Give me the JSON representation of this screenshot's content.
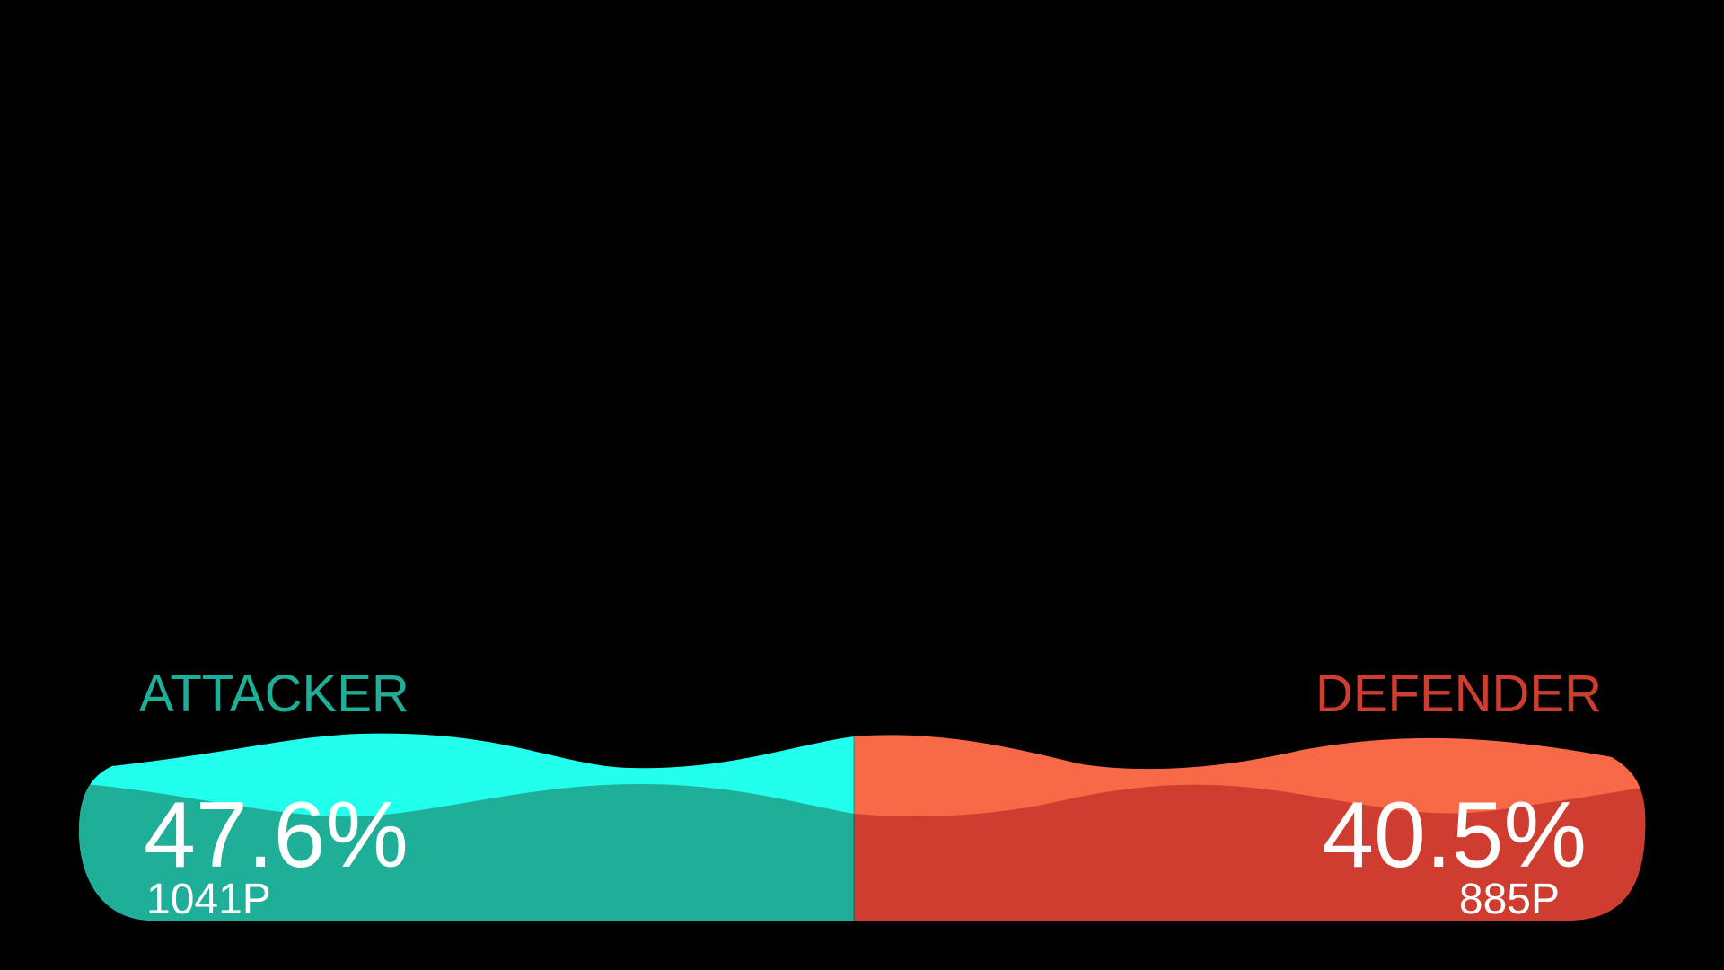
{
  "attacker": {
    "label": "ATTACKER",
    "percent": "47.6%",
    "points": "1041P",
    "label_color": "#1fae98",
    "wave_light_color": "#22ffec",
    "wave_dark_color": "#1fae98"
  },
  "defender": {
    "label": "DEFENDER",
    "percent": "40.5%",
    "points": "885P",
    "label_color": "#cf3d30",
    "wave_light_color": "#f86948",
    "wave_dark_color": "#cf3d30"
  },
  "background_color": "#000000",
  "text_color": "#ffffff"
}
